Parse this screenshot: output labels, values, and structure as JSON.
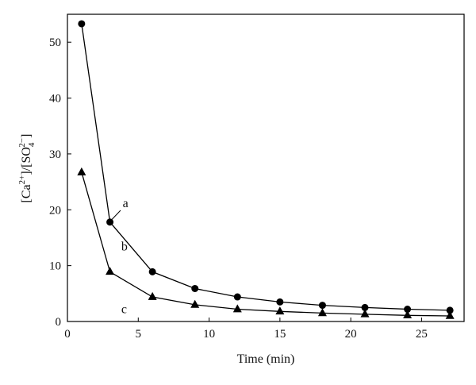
{
  "chart_data": {
    "type": "line",
    "xlabel": "Time (min)",
    "ylabel": {
      "base1": "[Ca",
      "sup1": "2+",
      "mid": "]/[SO",
      "sub2": "4",
      "sup2": "2−",
      "end": "]"
    },
    "xlim": [
      0,
      28
    ],
    "ylim": [
      0,
      55
    ],
    "x_ticks": [
      0,
      5,
      10,
      15,
      20,
      25
    ],
    "y_ticks": [
      0,
      10,
      20,
      30,
      40,
      50
    ],
    "grid": false,
    "series": [
      {
        "marker": "circle",
        "color": "#000000",
        "x": [
          1,
          3,
          6,
          9,
          12,
          15,
          18,
          21,
          24,
          27
        ],
        "y": [
          53.3,
          17.8,
          8.9,
          5.9,
          4.4,
          3.5,
          2.9,
          2.5,
          2.2,
          2.0
        ]
      },
      {
        "marker": "triangle",
        "color": "#000000",
        "x": [
          1,
          3,
          6,
          9,
          12,
          15,
          18,
          21,
          24,
          27
        ],
        "y": [
          26.7,
          8.9,
          4.4,
          3.0,
          2.2,
          1.8,
          1.5,
          1.3,
          1.1,
          1.0
        ]
      }
    ],
    "annotations": [
      {
        "text": "a",
        "x": 3.9,
        "y": 20.5
      },
      {
        "text": "b",
        "x": 3.8,
        "y": 12.7
      },
      {
        "text": "c",
        "x": 3.8,
        "y": 1.5
      }
    ]
  }
}
